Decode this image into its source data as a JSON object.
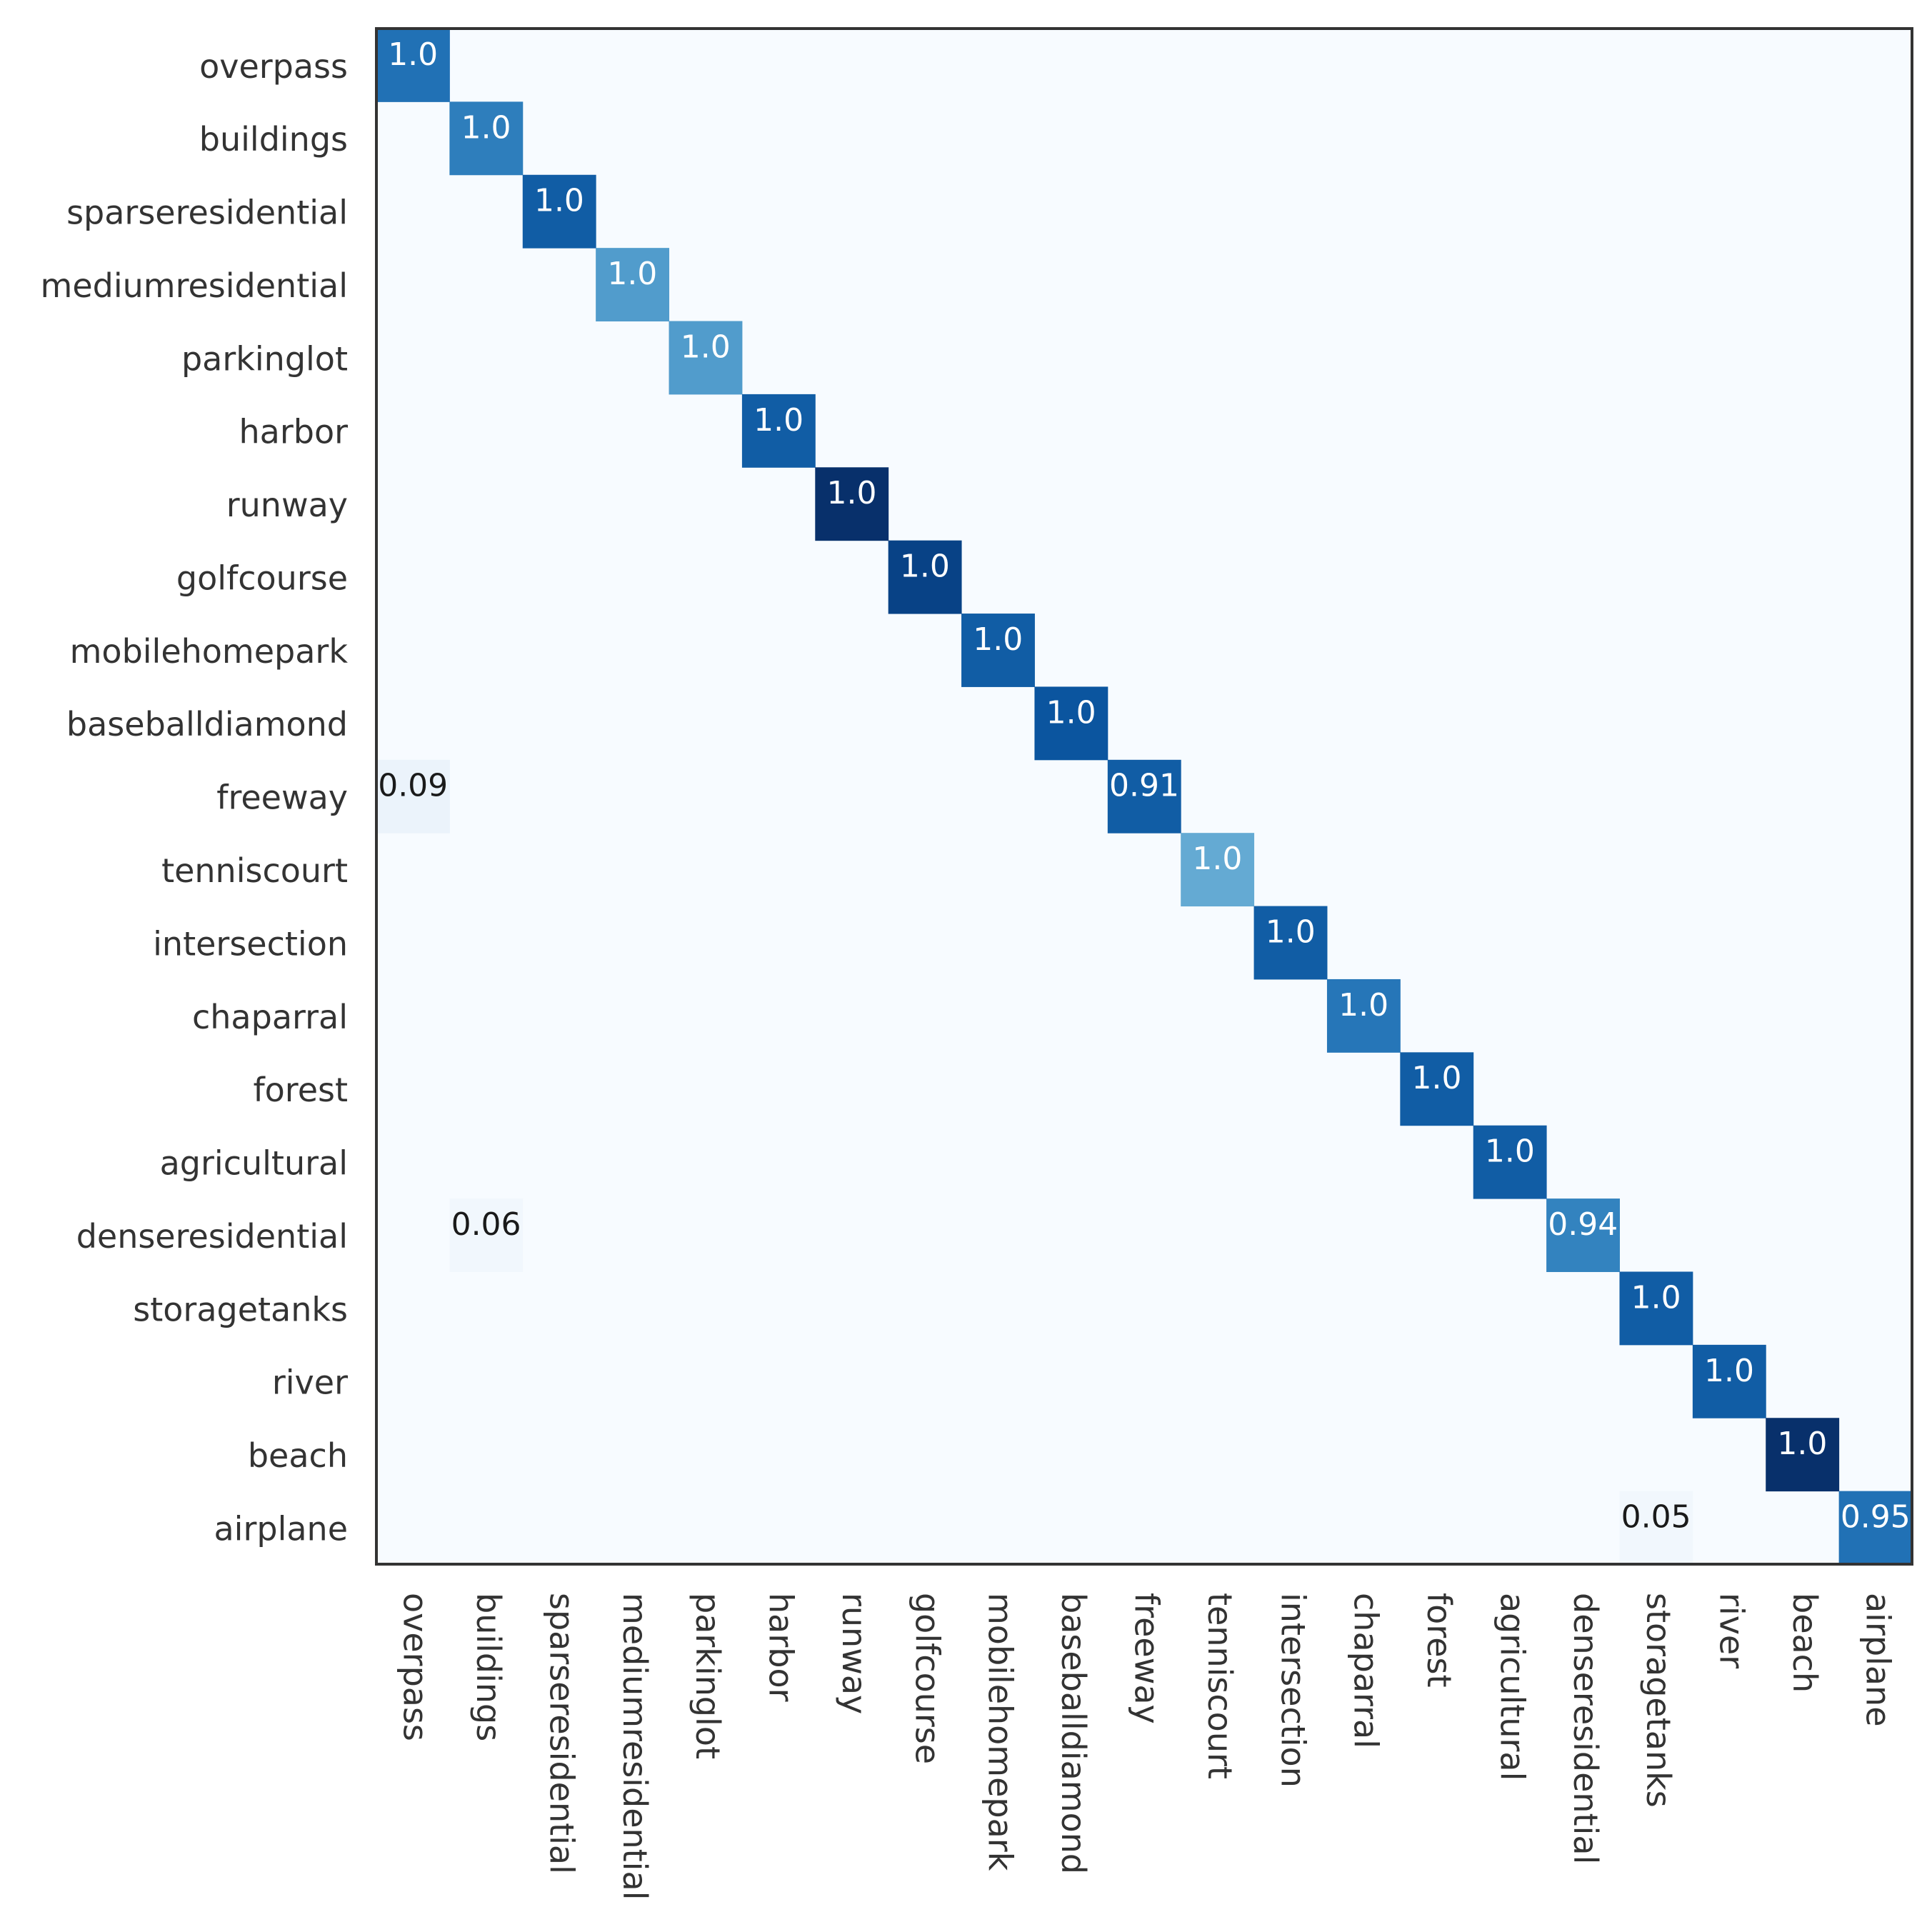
{
  "chart_data": {
    "type": "heatmap",
    "title": "",
    "xlabel": "",
    "ylabel": "",
    "colormap": "Blues",
    "row_labels": [
      "overpass",
      "buildings",
      "sparseresidential",
      "mediumresidential",
      "parkinglot",
      "harbor",
      "runway",
      "golfcourse",
      "mobilehomepark",
      "baseballdiamond",
      "freeway",
      "tenniscourt",
      "intersection",
      "chaparral",
      "forest",
      "agricultural",
      "denseresidential",
      "storagetanks",
      "river",
      "beach",
      "airplane"
    ],
    "col_labels": [
      "overpass",
      "buildings",
      "sparseresidential",
      "mediumresidential",
      "parkinglot",
      "harbor",
      "runway",
      "golfcourse",
      "mobilehomepark",
      "baseballdiamond",
      "freeway",
      "tenniscourt",
      "intersection",
      "chaparral",
      "forest",
      "agricultural",
      "denseresidential",
      "storagetanks",
      "river",
      "beach",
      "airplane"
    ],
    "cells": [
      {
        "row": 0,
        "col": 0,
        "label": "1.0",
        "shade": 0.75,
        "text_color": "#ffffff"
      },
      {
        "row": 1,
        "col": 1,
        "label": "1.0",
        "shade": 0.7,
        "text_color": "#ffffff"
      },
      {
        "row": 2,
        "col": 2,
        "label": "1.0",
        "shade": 0.83,
        "text_color": "#ffffff"
      },
      {
        "row": 3,
        "col": 3,
        "label": "1.0",
        "shade": 0.58,
        "text_color": "#ffffff"
      },
      {
        "row": 4,
        "col": 4,
        "label": "1.0",
        "shade": 0.58,
        "text_color": "#ffffff"
      },
      {
        "row": 5,
        "col": 5,
        "label": "1.0",
        "shade": 0.83,
        "text_color": "#ffffff"
      },
      {
        "row": 6,
        "col": 6,
        "label": "1.0",
        "shade": 1.0,
        "text_color": "#ffffff"
      },
      {
        "row": 7,
        "col": 7,
        "label": "1.0",
        "shade": 0.93,
        "text_color": "#ffffff"
      },
      {
        "row": 8,
        "col": 8,
        "label": "1.0",
        "shade": 0.83,
        "text_color": "#ffffff"
      },
      {
        "row": 9,
        "col": 9,
        "label": "1.0",
        "shade": 0.86,
        "text_color": "#ffffff"
      },
      {
        "row": 10,
        "col": 0,
        "label": "0.09",
        "shade": 0.06,
        "text_color": "#1a1a1a"
      },
      {
        "row": 10,
        "col": 10,
        "label": "0.91",
        "shade": 0.83,
        "text_color": "#ffffff"
      },
      {
        "row": 11,
        "col": 11,
        "label": "1.0",
        "shade": 0.52,
        "text_color": "#ffffff"
      },
      {
        "row": 12,
        "col": 12,
        "label": "1.0",
        "shade": 0.83,
        "text_color": "#ffffff"
      },
      {
        "row": 13,
        "col": 13,
        "label": "1.0",
        "shade": 0.73,
        "text_color": "#ffffff"
      },
      {
        "row": 14,
        "col": 14,
        "label": "1.0",
        "shade": 0.83,
        "text_color": "#ffffff"
      },
      {
        "row": 15,
        "col": 15,
        "label": "1.0",
        "shade": 0.83,
        "text_color": "#ffffff"
      },
      {
        "row": 16,
        "col": 1,
        "label": "0.06",
        "shade": 0.03,
        "text_color": "#1a1a1a"
      },
      {
        "row": 16,
        "col": 16,
        "label": "0.94",
        "shade": 0.68,
        "text_color": "#ffffff"
      },
      {
        "row": 17,
        "col": 17,
        "label": "1.0",
        "shade": 0.83,
        "text_color": "#ffffff"
      },
      {
        "row": 18,
        "col": 18,
        "label": "1.0",
        "shade": 0.83,
        "text_color": "#ffffff"
      },
      {
        "row": 19,
        "col": 19,
        "label": "1.0",
        "shade": 1.0,
        "text_color": "#ffffff"
      },
      {
        "row": 20,
        "col": 17,
        "label": "0.05",
        "shade": 0.03,
        "text_color": "#1a1a1a"
      },
      {
        "row": 20,
        "col": 20,
        "label": "0.95",
        "shade": 0.75,
        "text_color": "#ffffff"
      }
    ],
    "colors": {
      "background_cell": "#f7fbff",
      "frame": "#333333",
      "colormap_stops": [
        "#f7fbff",
        "#deebf7",
        "#c6dbef",
        "#9ecae1",
        "#6baed6",
        "#4292c6",
        "#2171b5",
        "#08519c",
        "#08306b"
      ]
    }
  }
}
